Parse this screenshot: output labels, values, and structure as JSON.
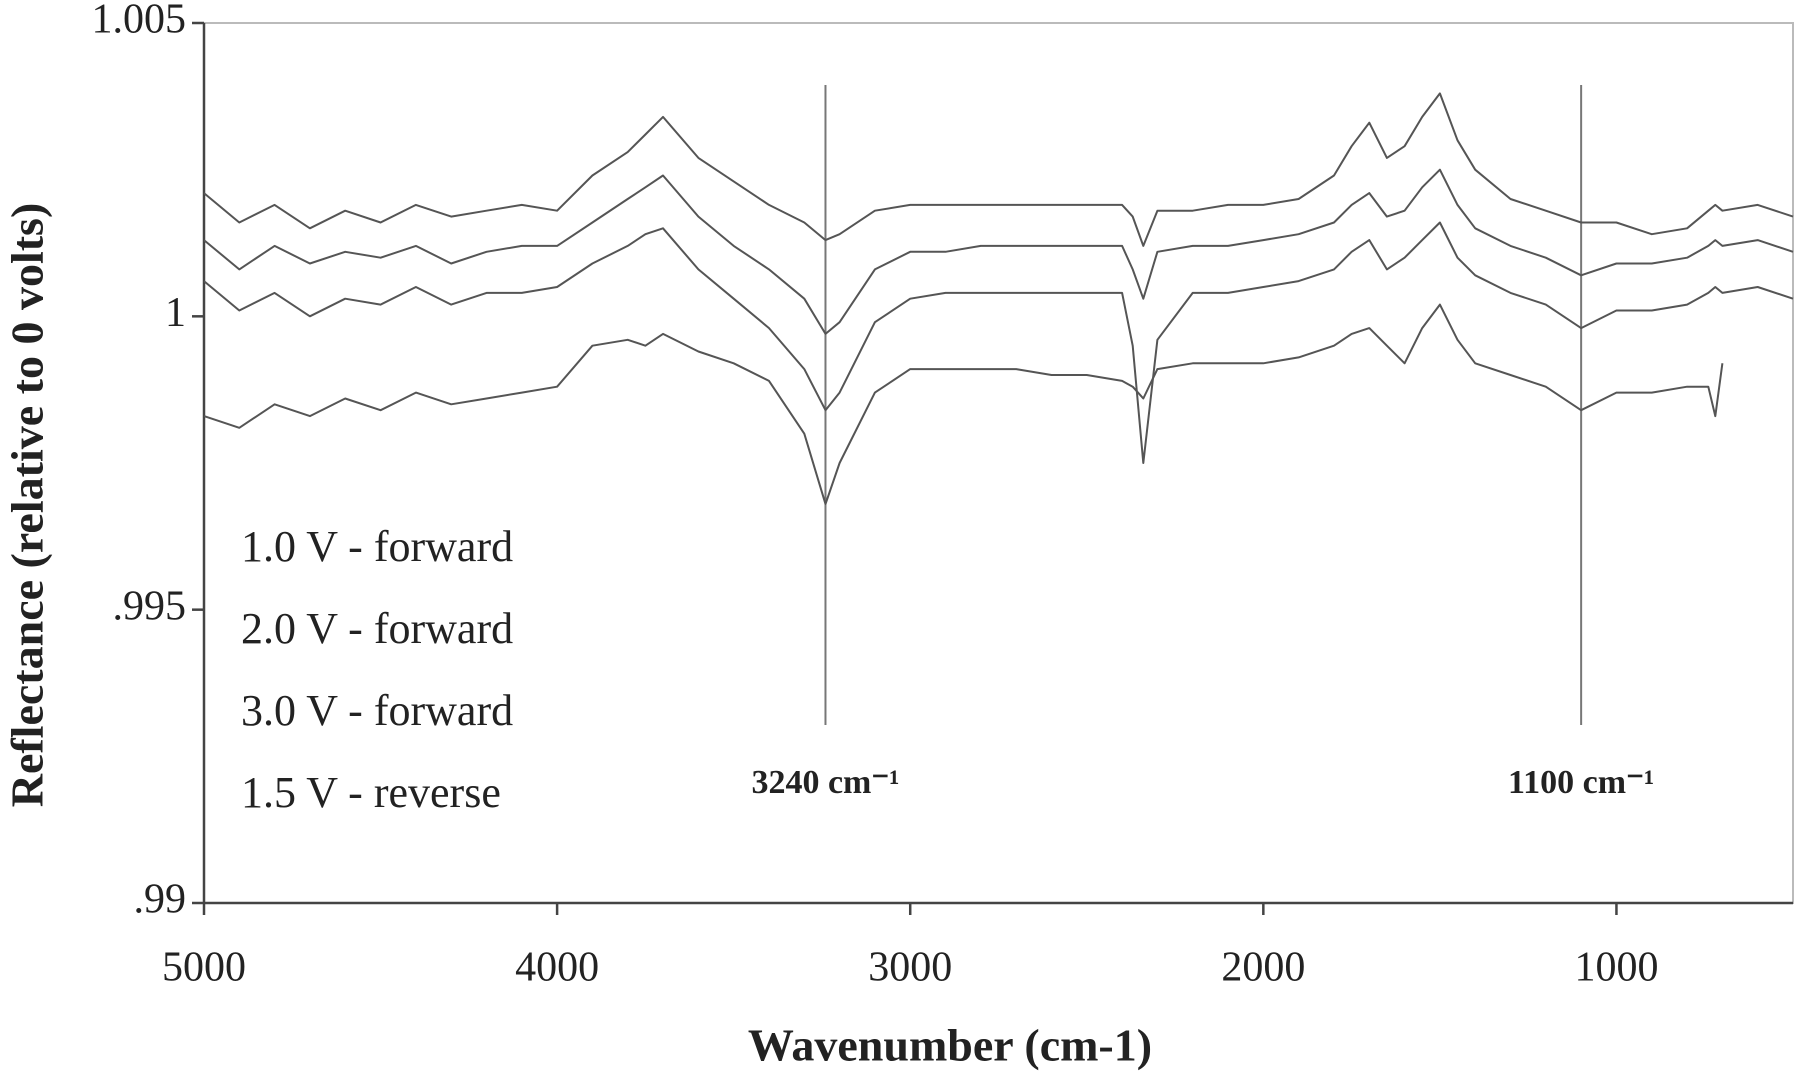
{
  "chart_data": {
    "type": "line",
    "x_label": "Wavenumber (cm-1)",
    "y_label": "Reflectance (relative to 0 volts)",
    "xlim": [
      5000,
      500
    ],
    "xticks": [
      5000,
      4000,
      3000,
      2000,
      1000
    ],
    "ylim": [
      0.99,
      1.005
    ],
    "yticks": [
      {
        "value": 0.99,
        "label": ".99"
      },
      {
        "value": 0.995,
        "label": ".995"
      },
      1,
      1.005
    ],
    "x": [
      5000,
      4900,
      4800,
      4700,
      4600,
      4500,
      4400,
      4300,
      4200,
      4100,
      4000,
      3900,
      3800,
      3750,
      3700,
      3600,
      3500,
      3400,
      3300,
      3240,
      3200,
      3100,
      3000,
      2900,
      2800,
      2700,
      2600,
      2500,
      2400,
      2370,
      2340,
      2300,
      2200,
      2100,
      2000,
      1900,
      1800,
      1750,
      1700,
      1650,
      1600,
      1550,
      1500,
      1450,
      1400,
      1300,
      1200,
      1100,
      1000,
      900,
      800,
      740,
      720,
      700,
      600,
      500
    ],
    "series": [
      {
        "name": "1.0 V - forward",
        "color": "#555555",
        "values": [
          1.0021,
          1.0016,
          1.0019,
          1.0015,
          1.0018,
          1.0016,
          1.0019,
          1.0017,
          1.0018,
          1.0019,
          1.0018,
          1.0024,
          1.0028,
          1.0031,
          1.0034,
          1.0027,
          1.0023,
          1.0019,
          1.0016,
          1.0013,
          1.0014,
          1.0018,
          1.0019,
          1.0019,
          1.0019,
          1.0019,
          1.0019,
          1.0019,
          1.0019,
          1.0017,
          1.0012,
          1.0018,
          1.0018,
          1.0019,
          1.0019,
          1.002,
          1.0024,
          1.0029,
          1.0033,
          1.0027,
          1.0029,
          1.0034,
          1.0038,
          1.003,
          1.0025,
          1.002,
          1.0018,
          1.0016,
          1.0016,
          1.0014,
          1.0015,
          1.0018,
          1.0019,
          1.0018,
          1.0019,
          1.0017
        ]
      },
      {
        "name": "2.0 V - forward",
        "color": "#555555",
        "values": [
          1.0013,
          1.0008,
          1.0012,
          1.0009,
          1.0011,
          1.001,
          1.0012,
          1.0009,
          1.0011,
          1.0012,
          1.0012,
          1.0016,
          1.002,
          1.0022,
          1.0024,
          1.0017,
          1.0012,
          1.0008,
          1.0003,
          0.9997,
          0.9999,
          1.0008,
          1.0011,
          1.0011,
          1.0012,
          1.0012,
          1.0012,
          1.0012,
          1.0012,
          1.0008,
          1.0003,
          1.0011,
          1.0012,
          1.0012,
          1.0013,
          1.0014,
          1.0016,
          1.0019,
          1.0021,
          1.0017,
          1.0018,
          1.0022,
          1.0025,
          1.0019,
          1.0015,
          1.0012,
          1.001,
          1.0007,
          1.0009,
          1.0009,
          1.001,
          1.0012,
          1.0013,
          1.0012,
          1.0013,
          1.0011
        ]
      },
      {
        "name": "3.0 V - forward",
        "color": "#555555",
        "values": [
          1.0006,
          1.0001,
          1.0004,
          1.0,
          1.0003,
          1.0002,
          1.0005,
          1.0002,
          1.0004,
          1.0004,
          1.0005,
          1.0009,
          1.0012,
          1.0014,
          1.0015,
          1.0008,
          1.0003,
          0.9998,
          0.9991,
          0.9984,
          0.9987,
          0.9999,
          1.0003,
          1.0004,
          1.0004,
          1.0004,
          1.0004,
          1.0004,
          1.0004,
          0.9995,
          0.9975,
          0.9996,
          1.0004,
          1.0004,
          1.0005,
          1.0006,
          1.0008,
          1.0011,
          1.0013,
          1.0008,
          1.001,
          1.0013,
          1.0016,
          1.001,
          1.0007,
          1.0004,
          1.0002,
          0.9998,
          1.0001,
          1.0001,
          1.0002,
          1.0004,
          1.0005,
          1.0004,
          1.0005,
          1.0003
        ]
      },
      {
        "name": "1.5 V - reverse",
        "color": "#555555",
        "values": [
          0.9983,
          0.9981,
          0.9985,
          0.9983,
          0.9986,
          0.9984,
          0.9987,
          0.9985,
          0.9986,
          0.9987,
          0.9988,
          0.9995,
          0.9996,
          0.9995,
          0.9997,
          0.9994,
          0.9992,
          0.9989,
          0.998,
          0.9968,
          0.9975,
          0.9987,
          0.9991,
          0.9991,
          0.9991,
          0.9991,
          0.999,
          0.999,
          0.9989,
          0.9988,
          0.9986,
          0.9991,
          0.9992,
          0.9992,
          0.9992,
          0.9993,
          0.9995,
          0.9997,
          0.9998,
          0.9995,
          0.9992,
          0.9998,
          1.0002,
          0.9996,
          0.9992,
          0.999,
          0.9988,
          0.9984,
          0.9987,
          0.9987,
          0.9988,
          0.9988,
          0.9983,
          0.9992,
          null,
          null
        ]
      }
    ],
    "annotations": [
      {
        "text": "3240 cm⁻¹",
        "x": 3240
      },
      {
        "text": "1100 cm⁻¹",
        "x": 1100
      }
    ]
  }
}
